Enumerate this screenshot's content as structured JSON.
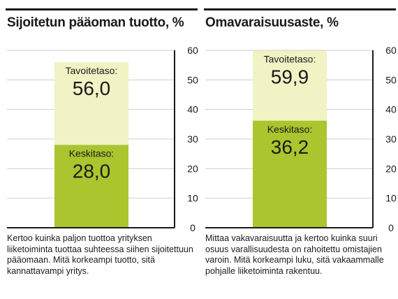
{
  "colors": {
    "target_fill": "#f1f3c4",
    "average_fill": "#aac52e",
    "grid": "#cfcfcf",
    "axis": "#1a1a1a"
  },
  "chart_data": [
    {
      "type": "bar",
      "title": "Sijoitetun pääoman tuotto, %",
      "ylim": [
        0,
        60
      ],
      "yticks": [
        0,
        10,
        20,
        30,
        40,
        50,
        60
      ],
      "grid": true,
      "series": [
        {
          "name": "Tavoitetaso:",
          "label": "56,0",
          "value": 56.0
        },
        {
          "name": "Keskitaso:",
          "label": "28,0",
          "value": 28.0
        }
      ],
      "description": "Kertoo kuinka paljon tuottoa yrityksen liiketoiminta tuottaa suhteessa siihen sijoitettuun pääomaan. Mitä korkeampi tuotto, sitä kannattavampi yritys."
    },
    {
      "type": "bar",
      "title": "Omavaraisuusaste, %",
      "ylim": [
        0,
        60
      ],
      "yticks": [
        0,
        10,
        20,
        30,
        40,
        50,
        60
      ],
      "grid": true,
      "series": [
        {
          "name": "Tavoitetaso:",
          "label": "59,9",
          "value": 59.9
        },
        {
          "name": "Keskitaso:",
          "label": "36,2",
          "value": 36.2
        }
      ],
      "description": "Mittaa vakavaraisuutta ja kertoo kuinka suuri osuus varallisuudesta on rahoitettu omistajien varoin. Mitä korkeampi luku, sitä vakaammalle pohjalle liiketoiminta rakentuu."
    }
  ]
}
